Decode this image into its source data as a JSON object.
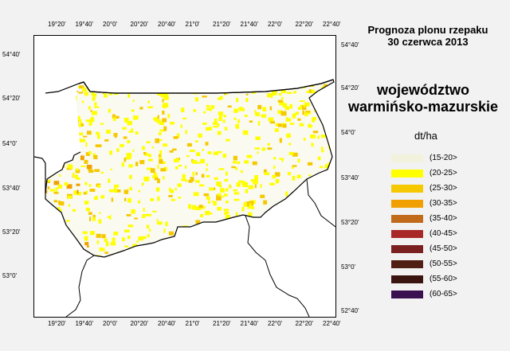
{
  "title": {
    "line1": "Prognoza plonu rzepaku",
    "line2": "30 czerwca 2013"
  },
  "region": {
    "line1": "województwo",
    "line2": "warmińsko-mazurskie"
  },
  "unit": "dt/ha",
  "legend": [
    {
      "label": "(15-20>",
      "color": "#f2f2dc"
    },
    {
      "label": "(20-25>",
      "color": "#ffff00"
    },
    {
      "label": "(25-30>",
      "color": "#f5c800"
    },
    {
      "label": "(30-35>",
      "color": "#f0a000"
    },
    {
      "label": "(35-40>",
      "color": "#c06a1a"
    },
    {
      "label": "(40-45>",
      "color": "#a82828"
    },
    {
      "label": "(45-50>",
      "color": "#7a2020"
    },
    {
      "label": "(50-55>",
      "color": "#502015"
    },
    {
      "label": "(55-60>",
      "color": "#3a1510"
    },
    {
      "label": "(60-65>",
      "color": "#3a1050"
    }
  ],
  "axes": {
    "top_lon": [
      "19°20'",
      "19°40'",
      "20°0'",
      "20°20'",
      "20°40'",
      "21°0'",
      "21°20'",
      "21°40'",
      "22°0'",
      "22°20'",
      "22°40'"
    ],
    "bottom_lon": [
      "19°20'",
      "19°40'",
      "20°0'",
      "20°20'",
      "20°40'",
      "21°0'",
      "21°20'",
      "21°40'",
      "22°0'",
      "22°20'",
      "22°40'"
    ],
    "left_lat": [
      "54°40'",
      "54°20'",
      "54°0'",
      "53°40'",
      "53°20'",
      "53°0'"
    ],
    "right_lat": [
      "54°40'",
      "54°20'",
      "54°0'",
      "53°40'",
      "53°20'",
      "53°0'",
      "52°40'"
    ]
  },
  "colors": {
    "background": "#f2f2f2",
    "map_background": "#ffffff",
    "boundary": "#000000"
  }
}
